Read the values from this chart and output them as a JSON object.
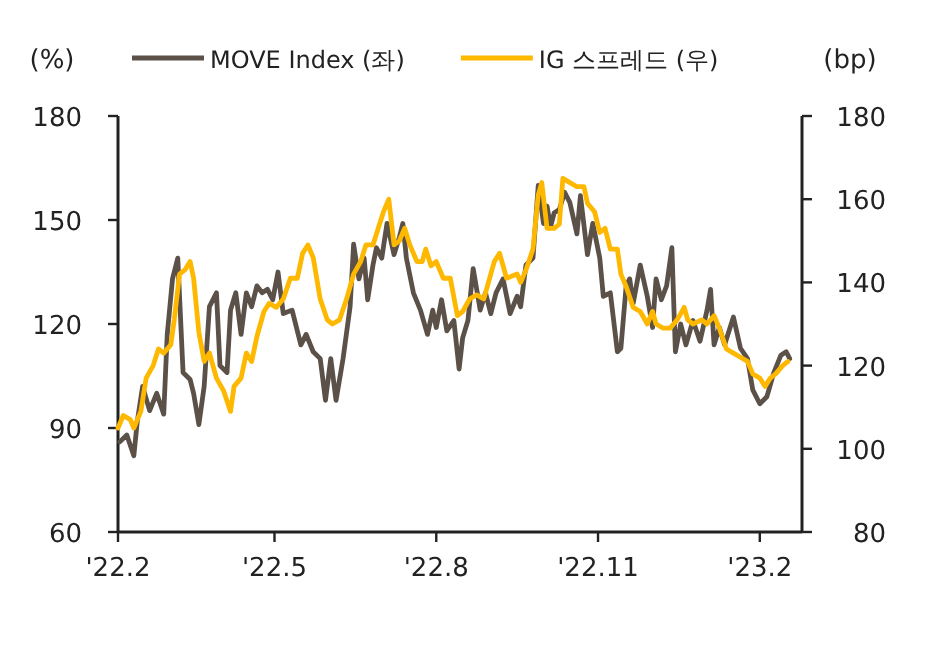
{
  "chart_data": {
    "type": "line",
    "ylabel": "(%)",
    "y2label": "(bp)",
    "legend": "top",
    "line_style": "solid",
    "marker": "none",
    "grid": false,
    "xlim": [
      "2022-02-01",
      "2023-02-25"
    ],
    "xticks": [
      {
        "value": "2022-02-01",
        "label": "'22.2"
      },
      {
        "value": "2022-05-01",
        "label": "'22.5"
      },
      {
        "value": "2022-08-01",
        "label": "'22.8"
      },
      {
        "value": "2022-11-01",
        "label": "'22.11"
      },
      {
        "value": "2023-02-01",
        "label": "'23.2"
      }
    ],
    "ylim": [
      60,
      180
    ],
    "yticks": [
      60,
      90,
      120,
      150,
      180
    ],
    "y2lim": [
      80,
      180
    ],
    "y2ticks": [
      80,
      100,
      120,
      140,
      160,
      180
    ],
    "series": [
      {
        "name": "MOVE Index (좌)",
        "color": "#5b5148",
        "x": [
          "2022-02-02",
          "2022-02-06",
          "2022-02-10",
          "2022-02-12",
          "2022-02-15",
          "2022-02-19",
          "2022-02-23",
          "2022-02-27",
          "2022-03-01",
          "2022-03-04",
          "2022-03-07",
          "2022-03-10",
          "2022-03-14",
          "2022-03-16",
          "2022-03-19",
          "2022-03-22",
          "2022-03-25",
          "2022-03-29",
          "2022-03-31",
          "2022-04-04",
          "2022-04-06",
          "2022-04-09",
          "2022-04-12",
          "2022-04-15",
          "2022-04-18",
          "2022-04-21",
          "2022-04-24",
          "2022-04-27",
          "2022-04-30",
          "2022-05-03",
          "2022-05-06",
          "2022-05-11",
          "2022-05-16",
          "2022-05-19",
          "2022-05-23",
          "2022-05-27",
          "2022-05-30",
          "2022-06-02",
          "2022-06-05",
          "2022-06-09",
          "2022-06-13",
          "2022-06-15",
          "2022-06-18",
          "2022-06-21",
          "2022-06-23",
          "2022-06-26",
          "2022-06-28",
          "2022-07-01",
          "2022-07-04",
          "2022-07-08",
          "2022-07-11",
          "2022-07-13",
          "2022-07-15",
          "2022-07-19",
          "2022-07-23",
          "2022-07-27",
          "2022-07-30",
          "2022-08-01",
          "2022-08-04",
          "2022-08-07",
          "2022-08-11",
          "2022-08-14",
          "2022-08-16",
          "2022-08-19",
          "2022-08-22",
          "2022-08-26",
          "2022-08-29",
          "2022-09-01",
          "2022-09-04",
          "2022-09-08",
          "2022-09-12",
          "2022-09-16",
          "2022-09-18",
          "2022-09-21",
          "2022-09-25",
          "2022-09-28",
          "2022-10-01",
          "2022-10-03",
          "2022-10-05",
          "2022-10-07",
          "2022-10-10",
          "2022-10-13",
          "2022-10-16",
          "2022-10-20",
          "2022-10-22",
          "2022-10-26",
          "2022-10-29",
          "2022-10-31",
          "2022-11-02",
          "2022-11-04",
          "2022-11-08",
          "2022-11-12",
          "2022-11-14",
          "2022-11-17",
          "2022-11-19",
          "2022-11-21",
          "2022-11-25",
          "2022-11-29",
          "2022-12-02",
          "2022-12-04",
          "2022-12-07",
          "2022-12-10",
          "2022-12-13",
          "2022-12-15",
          "2022-12-18",
          "2022-12-21",
          "2022-12-25",
          "2022-12-29",
          "2023-01-02",
          "2023-01-04",
          "2023-01-06",
          "2023-01-09",
          "2023-01-12",
          "2023-01-17",
          "2023-01-21",
          "2023-01-25",
          "2023-01-28",
          "2023-02-01",
          "2023-02-05",
          "2023-02-09",
          "2023-02-13",
          "2023-02-16",
          "2023-02-18"
        ],
        "values": [
          86,
          88,
          82,
          92,
          102,
          95,
          100,
          94,
          117,
          133,
          139,
          106,
          104,
          100,
          91,
          102,
          125,
          129,
          108,
          106,
          124,
          129,
          117,
          129,
          125,
          131,
          129,
          130,
          127,
          135,
          123,
          124,
          114,
          117,
          112,
          110,
          98,
          110,
          98,
          110,
          125,
          143,
          133,
          139,
          127,
          137,
          142,
          139,
          149,
          140,
          145,
          149,
          139,
          129,
          124,
          117,
          124,
          119,
          127,
          118,
          121,
          107,
          116,
          121,
          136,
          124,
          129,
          123,
          129,
          133,
          123,
          128,
          125,
          137,
          139,
          160,
          149,
          154,
          148,
          152,
          153,
          158,
          155,
          146,
          157,
          140,
          149,
          144,
          139,
          128,
          129,
          112,
          113,
          131,
          133,
          126,
          137,
          128,
          119,
          133,
          127,
          131,
          142,
          112,
          120,
          114,
          121,
          115,
          124,
          130,
          114,
          119,
          114,
          122,
          113,
          110,
          101,
          97,
          99,
          106,
          111,
          112,
          110
        ]
      },
      {
        "name": "IG 스프레드 (우)",
        "color": "#ffb800",
        "axis": "y2",
        "x": [
          "2022-02-01",
          "2022-02-04",
          "2022-02-08",
          "2022-02-10",
          "2022-02-14",
          "2022-02-17",
          "2022-02-21",
          "2022-02-24",
          "2022-02-27",
          "2022-03-03",
          "2022-03-05",
          "2022-03-08",
          "2022-03-11",
          "2022-03-14",
          "2022-03-16",
          "2022-03-19",
          "2022-03-22",
          "2022-03-25",
          "2022-03-29",
          "2022-04-02",
          "2022-04-06",
          "2022-04-08",
          "2022-04-12",
          "2022-04-15",
          "2022-04-18",
          "2022-04-21",
          "2022-04-25",
          "2022-04-28",
          "2022-05-02",
          "2022-05-06",
          "2022-05-10",
          "2022-05-14",
          "2022-05-17",
          "2022-05-20",
          "2022-05-23",
          "2022-05-27",
          "2022-05-31",
          "2022-06-03",
          "2022-06-07",
          "2022-06-11",
          "2022-06-15",
          "2022-06-19",
          "2022-06-22",
          "2022-06-26",
          "2022-06-29",
          "2022-07-02",
          "2022-07-05",
          "2022-07-08",
          "2022-07-11",
          "2022-07-14",
          "2022-07-17",
          "2022-07-21",
          "2022-07-24",
          "2022-07-26",
          "2022-07-29",
          "2022-08-01",
          "2022-08-05",
          "2022-08-09",
          "2022-08-13",
          "2022-08-16",
          "2022-08-20",
          "2022-08-24",
          "2022-08-28",
          "2022-09-03",
          "2022-09-06",
          "2022-09-10",
          "2022-09-16",
          "2022-09-18",
          "2022-09-21",
          "2022-09-25",
          "2022-09-28",
          "2022-09-30",
          "2022-10-03",
          "2022-10-07",
          "2022-10-10",
          "2022-10-12",
          "2022-10-16",
          "2022-10-20",
          "2022-10-24",
          "2022-10-26",
          "2022-10-30",
          "2022-11-02",
          "2022-11-05",
          "2022-11-08",
          "2022-11-12",
          "2022-11-14",
          "2022-11-17",
          "2022-11-21",
          "2022-11-25",
          "2022-11-29",
          "2022-12-02",
          "2022-12-04",
          "2022-12-08",
          "2022-12-12",
          "2022-12-16",
          "2022-12-20",
          "2022-12-22",
          "2022-12-25",
          "2022-12-30",
          "2023-01-02",
          "2023-01-06",
          "2023-01-09",
          "2023-01-13",
          "2023-01-17",
          "2023-01-21",
          "2023-01-25",
          "2023-01-28",
          "2023-02-01",
          "2023-02-04",
          "2023-02-07",
          "2023-02-10",
          "2023-02-14",
          "2023-02-17"
        ],
        "values": [
          105,
          108,
          107,
          105,
          109,
          117,
          120,
          124,
          123,
          125,
          131,
          142,
          143,
          145,
          141,
          128,
          121,
          123,
          117,
          114,
          109,
          115,
          117,
          123,
          121,
          127,
          133,
          135,
          134,
          136,
          141,
          141,
          147,
          149,
          146,
          136,
          131,
          130,
          131,
          136,
          142,
          145,
          149,
          149,
          153,
          157,
          160,
          149,
          150,
          153,
          149,
          145,
          145,
          148,
          144,
          145,
          141,
          141,
          132,
          133,
          136,
          137,
          136,
          145,
          147,
          141,
          142,
          140,
          143,
          148,
          161,
          164,
          153,
          153,
          154,
          165,
          164,
          163,
          163,
          159,
          157,
          152,
          153,
          148,
          148,
          142,
          139,
          134,
          133,
          130,
          133,
          130,
          129,
          129,
          131,
          134,
          131,
          130,
          131,
          130,
          132,
          129,
          124,
          123,
          122,
          121,
          118,
          117,
          115,
          117,
          118,
          120,
          121
        ]
      }
    ]
  }
}
